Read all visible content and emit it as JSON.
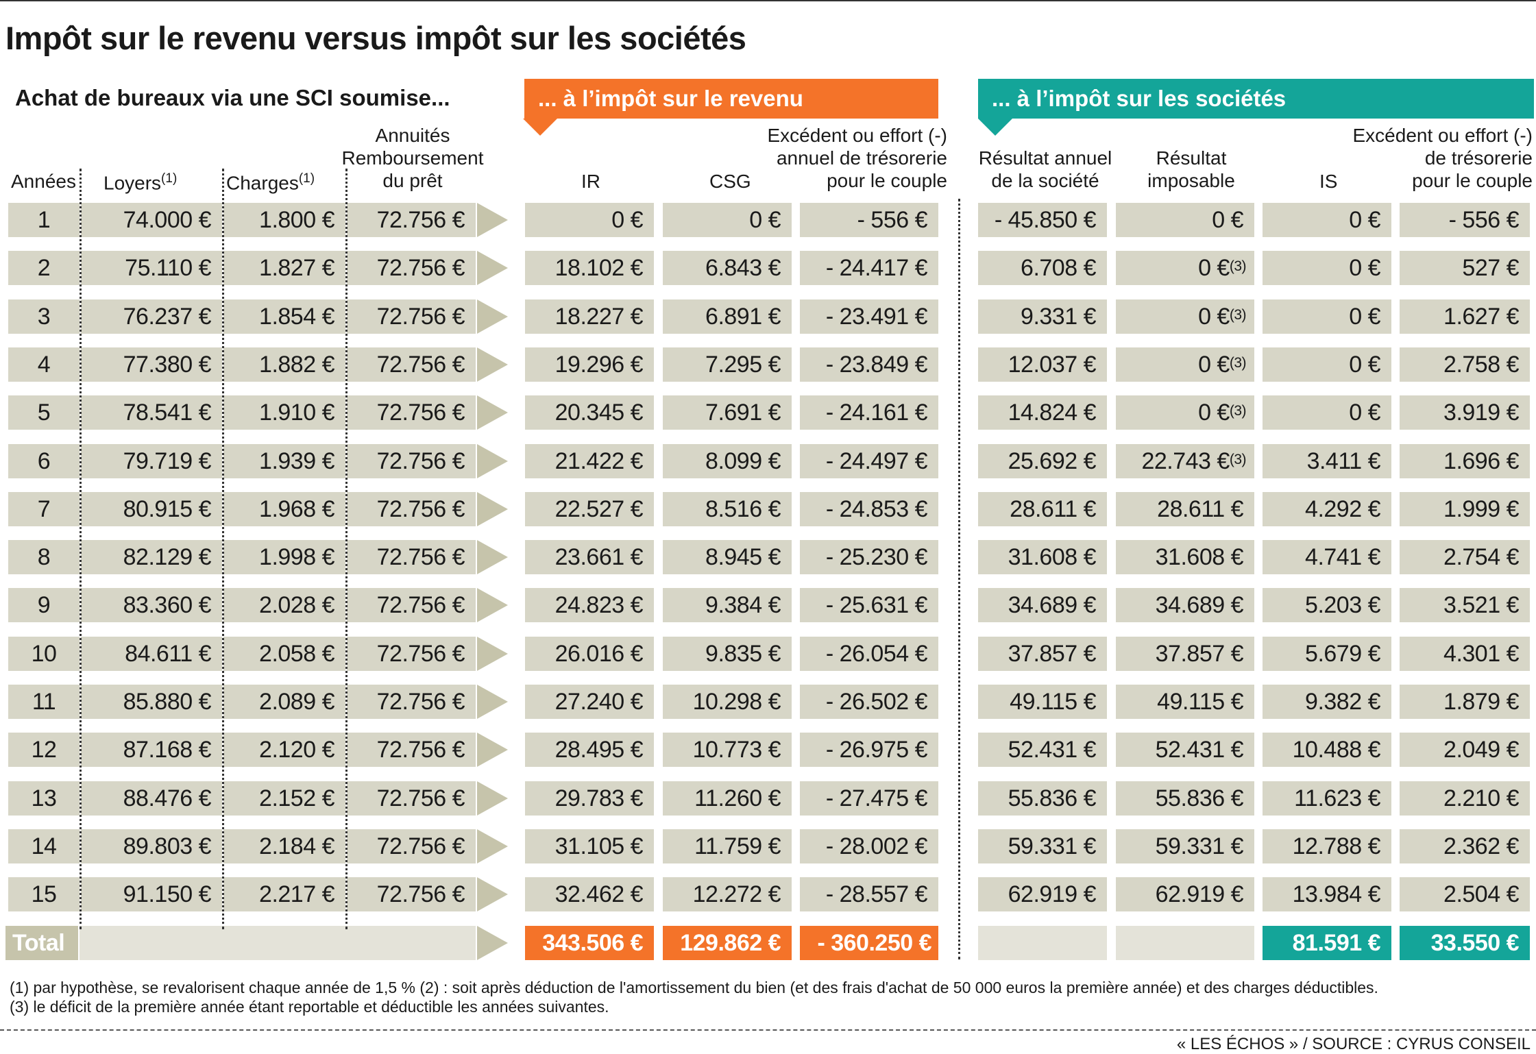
{
  "title": "Impôt sur le revenu versus impôt sur les sociétés",
  "subtitle": "Achat de bureaux via une SCI soumise...",
  "banner_ir": "... à l’impôt sur le revenu",
  "banner_is": "... à l’impôt sur les sociétés",
  "headers": {
    "annees": "Années",
    "loyers": "Loyers",
    "loyers_note": "(1)",
    "charges": "Charges",
    "charges_note": "(1)",
    "annuites": [
      "Annuités",
      "Remboursement",
      "du prêt"
    ],
    "ir": "IR",
    "csg": "CSG",
    "excedent_ir": [
      "Excédent ou effort (-)",
      "annuel de trésorerie",
      "pour le couple"
    ],
    "resultat_annuel": [
      "Résultat annuel",
      "de la société"
    ],
    "resultat_imposable": [
      "Résultat",
      "imposable"
    ],
    "is": "IS",
    "excedent_is": [
      "Excédent ou effort (-)",
      "de trésorerie",
      "pour le couple"
    ]
  },
  "chart_data": {
    "type": "table",
    "columns": [
      "Années",
      "Loyers",
      "Charges",
      "Annuités Remboursement du prêt",
      "IR",
      "CSG",
      "Excédent ou effort (-) annuel de trésorerie pour le couple",
      "Résultat annuel de la société",
      "Résultat imposable",
      "IS",
      "Excédent ou effort (-) de trésorerie pour le couple"
    ],
    "rows": [
      [
        "1",
        "74.000 €",
        "1.800 €",
        "72.756 €",
        "0 €",
        "0 €",
        "- 556 €",
        "- 45.850 €",
        "0 €",
        "0 €",
        "- 556 €"
      ],
      [
        "2",
        "75.110 €",
        "1.827 €",
        "72.756 €",
        "18.102 €",
        "6.843 €",
        "- 24.417 €",
        "6.708 €",
        "0 €",
        "0 €",
        "527 €"
      ],
      [
        "3",
        "76.237 €",
        "1.854 €",
        "72.756 €",
        "18.227 €",
        "6.891 €",
        "- 23.491 €",
        "9.331 €",
        "0 €",
        "0 €",
        "1.627 €"
      ],
      [
        "4",
        "77.380 €",
        "1.882 €",
        "72.756 €",
        "19.296 €",
        "7.295 €",
        "- 23.849 €",
        "12.037 €",
        "0 €",
        "0 €",
        "2.758 €"
      ],
      [
        "5",
        "78.541 €",
        "1.910 €",
        "72.756 €",
        "20.345 €",
        "7.691 €",
        "- 24.161 €",
        "14.824 €",
        "0 €",
        "0 €",
        "3.919 €"
      ],
      [
        "6",
        "79.719 €",
        "1.939 €",
        "72.756 €",
        "21.422 €",
        "8.099 €",
        "- 24.497 €",
        "25.692 €",
        "22.743 €",
        "3.411 €",
        "1.696 €"
      ],
      [
        "7",
        "80.915 €",
        "1.968 €",
        "72.756 €",
        "22.527 €",
        "8.516 €",
        "- 24.853 €",
        "28.611 €",
        "28.611 €",
        "4.292 €",
        "1.999 €"
      ],
      [
        "8",
        "82.129 €",
        "1.998 €",
        "72.756 €",
        "23.661 €",
        "8.945 €",
        "- 25.230 €",
        "31.608 €",
        "31.608 €",
        "4.741 €",
        "2.754 €"
      ],
      [
        "9",
        "83.360 €",
        "2.028 €",
        "72.756 €",
        "24.823 €",
        "9.384 €",
        "- 25.631 €",
        "34.689 €",
        "34.689 €",
        "5.203 €",
        "3.521 €"
      ],
      [
        "10",
        "84.611 €",
        "2.058 €",
        "72.756 €",
        "26.016 €",
        "9.835 €",
        "- 26.054 €",
        "37.857 €",
        "37.857 €",
        "5.679 €",
        "4.301 €"
      ],
      [
        "11",
        "85.880 €",
        "2.089 €",
        "72.756 €",
        "27.240 €",
        "10.298 €",
        "- 26.502 €",
        "49.115 €",
        "49.115 €",
        "9.382 €",
        "1.879 €"
      ],
      [
        "12",
        "87.168 €",
        "2.120 €",
        "72.756 €",
        "28.495 €",
        "10.773 €",
        "- 26.975 €",
        "52.431 €",
        "52.431 €",
        "10.488 €",
        "2.049 €"
      ],
      [
        "13",
        "88.476 €",
        "2.152 €",
        "72.756 €",
        "29.783 €",
        "11.260 €",
        "- 27.475 €",
        "55.836 €",
        "55.836 €",
        "11.623 €",
        "2.210 €"
      ],
      [
        "14",
        "89.803 €",
        "2.184 €",
        "72.756 €",
        "31.105 €",
        "11.759 €",
        "- 28.002 €",
        "59.331 €",
        "59.331 €",
        "12.788 €",
        "2.362 €"
      ],
      [
        "15",
        "91.150 €",
        "2.217 €",
        "72.756 €",
        "32.462 €",
        "12.272 €",
        "- 28.557 €",
        "62.919 €",
        "62.919 €",
        "13.984 €",
        "2.504 €"
      ]
    ],
    "note3_rows": [
      2,
      3,
      4,
      5,
      6
    ],
    "note3_mark": "(3)",
    "total": {
      "label": "Total",
      "ir": "343.506 €",
      "csg": "129.862 €",
      "excedent_ir": "- 360.250 €",
      "is": "81.591 €",
      "excedent_is": "33.550 €"
    }
  },
  "footnotes": [
    "(1) par hypothèse, se revalorisent chaque année de 1,5 % (2) : soit après déduction de l'amortissement du bien (et des frais d'achat de 50 000 euros la première année) et des charges déductibles.",
    "(3) le déficit de la première année étant reportable et déductible les années suivantes."
  ],
  "source": "« LES ÉCHOS » / SOURCE : CYRUS CONSEIL",
  "colors": {
    "orange": "#f47329",
    "teal": "#14a599",
    "tan": "#d7d6c7",
    "light": "#e4e3d9",
    "arrow": "#c6c4ab"
  }
}
